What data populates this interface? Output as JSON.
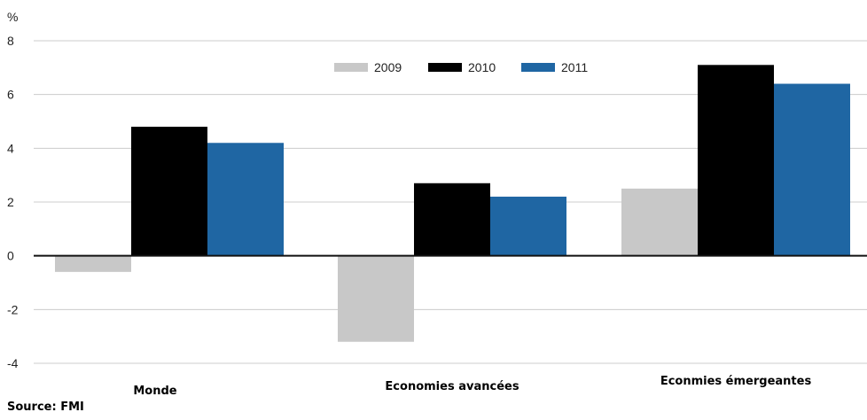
{
  "chart_data": {
    "type": "bar",
    "ylabel": "%",
    "ylim": [
      -4,
      8
    ],
    "yticks": [
      8,
      6,
      4,
      2,
      0,
      -2,
      -4
    ],
    "grid": true,
    "legend_position": "top-center",
    "categories": [
      "Monde",
      "Economies avancées",
      "Econmies émergeantes"
    ],
    "series": [
      {
        "name": "2009",
        "color": "#c8c8c8",
        "values": [
          -0.6,
          -3.2,
          2.5
        ]
      },
      {
        "name": "2010",
        "color": "#000000",
        "values": [
          4.8,
          2.7,
          7.1
        ]
      },
      {
        "name": "2011",
        "color": "#1f66a3",
        "values": [
          4.2,
          2.2,
          6.4
        ]
      }
    ]
  },
  "source": "Source: FMI"
}
